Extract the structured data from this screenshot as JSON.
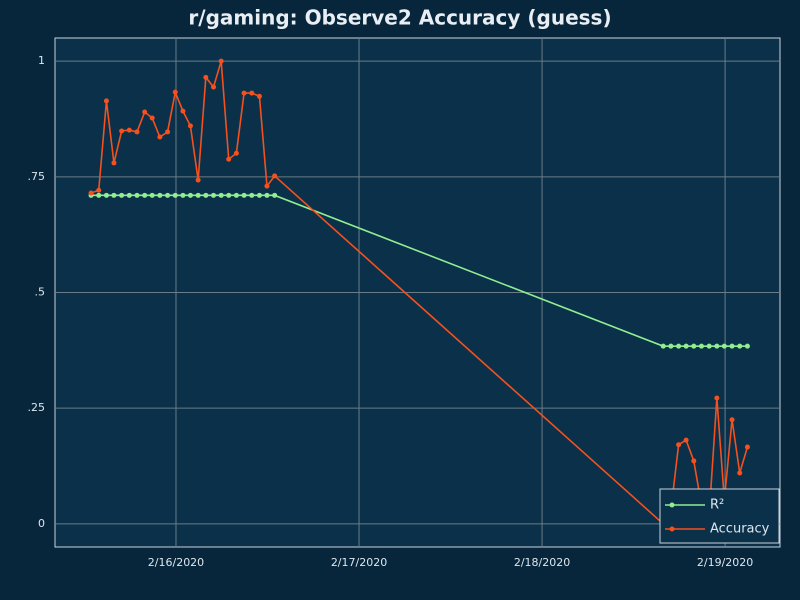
{
  "chart_data": {
    "type": "line",
    "title": "r/gaming: Observe2 Accuracy (guess)",
    "x": [
      15.536,
      15.578,
      15.62,
      15.661,
      15.703,
      15.745,
      15.787,
      15.829,
      15.87,
      15.912,
      15.954,
      15.996,
      16.038,
      16.079,
      16.121,
      16.163,
      16.205,
      16.247,
      16.288,
      16.33,
      16.372,
      16.414,
      16.456,
      16.497,
      16.539,
      18.662,
      18.704,
      18.746,
      18.787,
      18.829,
      18.871,
      18.913,
      18.955,
      18.996,
      19.038,
      19.08,
      19.122
    ],
    "series": [
      {
        "name": "R²",
        "color": "#90ee90",
        "values": [
          0.71,
          0.71,
          0.71,
          0.71,
          0.71,
          0.71,
          0.71,
          0.71,
          0.71,
          0.71,
          0.71,
          0.71,
          0.71,
          0.71,
          0.71,
          0.71,
          0.71,
          0.71,
          0.71,
          0.71,
          0.71,
          0.71,
          0.71,
          0.71,
          0.71,
          0.384,
          0.384,
          0.384,
          0.384,
          0.384,
          0.384,
          0.384,
          0.384,
          0.384,
          0.384,
          0.384,
          0.384
        ]
      },
      {
        "name": "Accuracy",
        "color": "#f4511e",
        "values": [
          0.715,
          0.721,
          0.914,
          0.78,
          0.849,
          0.851,
          0.847,
          0.89,
          0.877,
          0.836,
          0.847,
          0.933,
          0.892,
          0.86,
          0.743,
          0.965,
          0.944,
          1.0,
          0.788,
          0.801,
          0.931,
          0.931,
          0.924,
          0.73,
          0.752,
          0,
          0.03,
          0.171,
          0.181,
          0.136,
          0.041,
          0.019,
          0.272,
          0.052,
          0.225,
          0.11,
          0.166
        ]
      }
    ],
    "xlim": [
      15.339,
      19.3
    ],
    "xticks": [
      {
        "value": 16,
        "label": "2/16/2020"
      },
      {
        "value": 17,
        "label": "2/17/2020"
      },
      {
        "value": 18,
        "label": "2/18/2020"
      },
      {
        "value": 19,
        "label": "2/19/2020"
      }
    ],
    "ylim": [
      -0.05,
      1.05
    ],
    "yticks": [
      0,
      {
        "value": 0.25,
        "label": ".25"
      },
      {
        "value": 0.5,
        "label": ".5"
      },
      {
        "value": 0.75,
        "label": ".75"
      },
      1
    ],
    "grid": true,
    "legend": "lower right"
  }
}
